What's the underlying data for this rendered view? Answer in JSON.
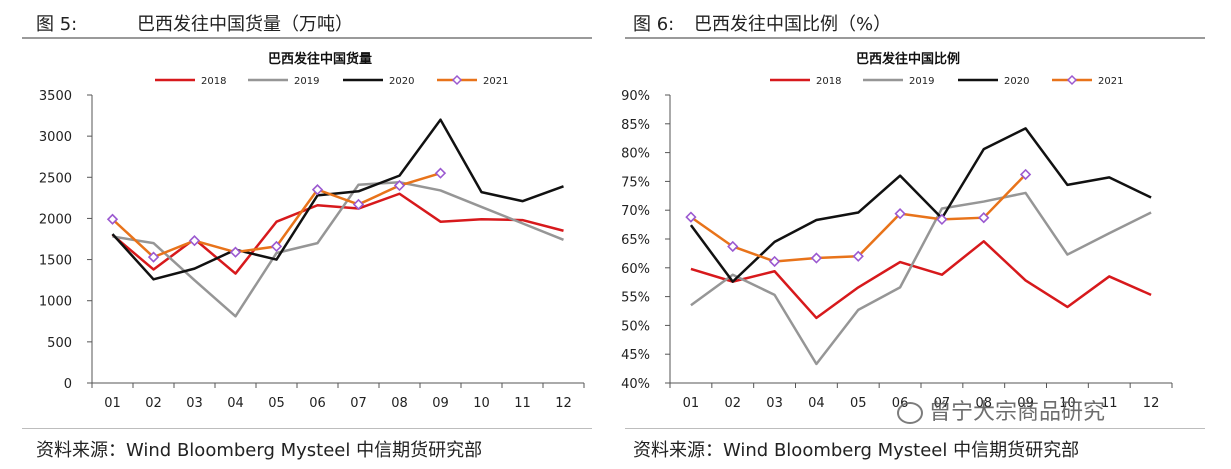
{
  "figures": [
    {
      "label": "图 5:",
      "caption": "巴西发往中国货量（万吨）",
      "source": "资料来源：Wind Bloomberg Mysteel 中信期货研究部"
    },
    {
      "label": "图 6:",
      "caption": "巴西发往中国比例（%）",
      "source": "资料来源：Wind Bloomberg Mysteel 中信期货研究部"
    }
  ],
  "watermark": "曾宁大宗商品研究",
  "chart_data": [
    {
      "type": "line",
      "title": "巴西发往中国货量",
      "xlabel": "",
      "ylabel": "",
      "categories": [
        "01",
        "02",
        "03",
        "04",
        "05",
        "06",
        "07",
        "08",
        "09",
        "10",
        "11",
        "12"
      ],
      "ylim": [
        0,
        3500
      ],
      "yticks": [
        0,
        500,
        1000,
        1500,
        2000,
        2500,
        3000,
        3500
      ],
      "ytick_labels": [
        "0",
        "500",
        "1000",
        "1500",
        "2000",
        "2500",
        "3000",
        "3500"
      ],
      "grid": false,
      "legend": "top",
      "series": [
        {
          "name": "2018",
          "color": "#d7191c",
          "marker": false,
          "values": [
            1800,
            1380,
            1750,
            1330,
            1960,
            2160,
            2120,
            2300,
            1960,
            1990,
            1980,
            1850
          ]
        },
        {
          "name": "2019",
          "color": "#969696",
          "marker": false,
          "values": [
            1780,
            1700,
            1250,
            810,
            1580,
            1700,
            2410,
            2440,
            2340,
            2140,
            1940,
            1740
          ]
        },
        {
          "name": "2020",
          "color": "#111111",
          "marker": false,
          "values": [
            1810,
            1260,
            1390,
            1620,
            1500,
            2280,
            2330,
            2520,
            3200,
            2320,
            2210,
            2390
          ]
        },
        {
          "name": "2021",
          "color": "#e8731a",
          "marker": true,
          "marker_color": "#9b59d0",
          "values": [
            1990,
            1530,
            1730,
            1590,
            1660,
            2350,
            2170,
            2400,
            2550,
            null,
            null,
            null
          ]
        }
      ]
    },
    {
      "type": "line",
      "title": "巴西发往中国比例",
      "xlabel": "",
      "ylabel": "",
      "categories": [
        "01",
        "02",
        "03",
        "04",
        "05",
        "06",
        "07",
        "08",
        "09",
        "10",
        "11",
        "12"
      ],
      "ylim": [
        40,
        90
      ],
      "yticks": [
        40,
        45,
        50,
        55,
        60,
        65,
        70,
        75,
        80,
        85,
        90
      ],
      "ytick_labels": [
        "40%",
        "45%",
        "50%",
        "55%",
        "60%",
        "65%",
        "70%",
        "75%",
        "80%",
        "85%",
        "90%"
      ],
      "grid": false,
      "legend": "top",
      "series": [
        {
          "name": "2018",
          "color": "#d7191c",
          "marker": false,
          "values": [
            59.8,
            57.6,
            59.4,
            51.3,
            56.6,
            61.0,
            58.8,
            64.6,
            57.8,
            53.2,
            58.5,
            55.3
          ]
        },
        {
          "name": "2019",
          "color": "#969696",
          "marker": false,
          "values": [
            53.5,
            58.8,
            55.3,
            43.3,
            52.7,
            56.6,
            70.3,
            71.5,
            73.0,
            62.3,
            66.0,
            69.6
          ]
        },
        {
          "name": "2020",
          "color": "#111111",
          "marker": false,
          "values": [
            67.4,
            57.6,
            64.5,
            68.3,
            69.6,
            76.0,
            68.6,
            80.6,
            84.2,
            74.4,
            75.7,
            72.2
          ]
        },
        {
          "name": "2021",
          "color": "#e8731a",
          "marker": true,
          "marker_color": "#9b59d0",
          "values": [
            68.8,
            63.7,
            61.1,
            61.7,
            62.0,
            69.4,
            68.4,
            68.7,
            76.2,
            null,
            null,
            null
          ]
        }
      ]
    }
  ]
}
